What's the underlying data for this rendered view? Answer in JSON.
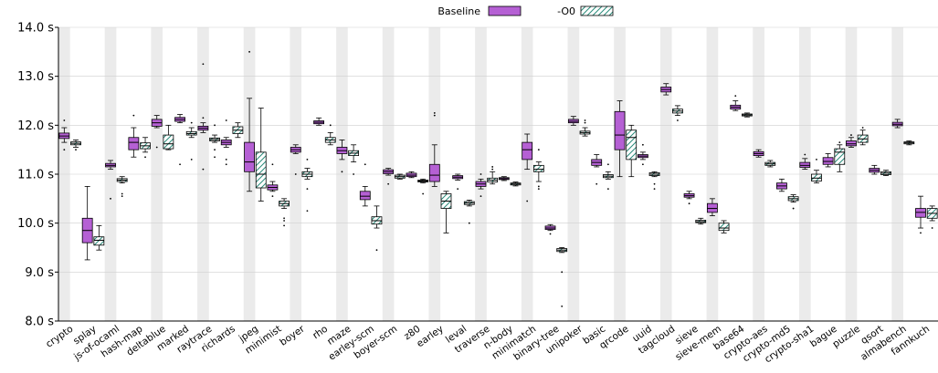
{
  "chart_data": {
    "type": "box",
    "ylim": [
      8.0,
      14.0
    ],
    "yticks": [
      {
        "value": 8.0,
        "label": "8.0 s"
      },
      {
        "value": 9.0,
        "label": "9.0 s"
      },
      {
        "value": 10.0,
        "label": "10.0 s"
      },
      {
        "value": 11.0,
        "label": "11.0 s"
      },
      {
        "value": 12.0,
        "label": "12.0 s"
      },
      {
        "value": 13.0,
        "label": "13.0 s"
      },
      {
        "value": 14.0,
        "label": "14.0 s"
      }
    ],
    "legend_position": "top-center",
    "series": [
      {
        "name": "Baseline",
        "color": "#b560d4",
        "pattern": "solid"
      },
      {
        "name": "-O0",
        "color": "#2a8b7a",
        "pattern": "hatched"
      }
    ],
    "categories": [
      "crypto",
      "splay",
      "js-of-ocaml",
      "hash-map",
      "deltablue",
      "marked",
      "raytrace",
      "richards",
      "jpeg",
      "minimist",
      "boyer",
      "rho",
      "maze",
      "earley-scm",
      "boyer-scm",
      "z80",
      "earley",
      "leval",
      "traverse",
      "n-body",
      "minimatch",
      "binary-tree",
      "unipoker",
      "basic",
      "qrcode",
      "uuid",
      "tagcloud",
      "sieve",
      "sieve-mem",
      "base64",
      "crypto-aes",
      "crypto-md5",
      "crypto-sha1",
      "bague",
      "puzzle",
      "qsort",
      "almabench",
      "fannkuch"
    ],
    "boxes": [
      {
        "category": "crypto",
        "series": "Baseline",
        "min": 11.65,
        "q1": 11.73,
        "median": 11.78,
        "q3": 11.84,
        "max": 11.95,
        "outliers": [
          12.1,
          11.5
        ]
      },
      {
        "category": "crypto",
        "series": "-O0",
        "min": 11.55,
        "q1": 11.6,
        "median": 11.63,
        "q3": 11.66,
        "max": 11.7,
        "outliers": [
          11.5
        ]
      },
      {
        "category": "splay",
        "series": "Baseline",
        "min": 9.25,
        "q1": 9.6,
        "median": 9.85,
        "q3": 10.1,
        "max": 10.75,
        "outliers": []
      },
      {
        "category": "splay",
        "series": "-O0",
        "min": 9.45,
        "q1": 9.55,
        "median": 9.65,
        "q3": 9.72,
        "max": 9.95,
        "outliers": []
      },
      {
        "category": "js-of-ocaml",
        "series": "Baseline",
        "min": 11.1,
        "q1": 11.15,
        "median": 11.18,
        "q3": 11.22,
        "max": 11.28,
        "outliers": [
          10.5
        ]
      },
      {
        "category": "js-of-ocaml",
        "series": "-O0",
        "min": 10.82,
        "q1": 10.85,
        "median": 10.88,
        "q3": 10.91,
        "max": 10.95,
        "outliers": [
          10.6,
          10.55
        ]
      },
      {
        "category": "hash-map",
        "series": "Baseline",
        "min": 11.35,
        "q1": 11.5,
        "median": 11.65,
        "q3": 11.75,
        "max": 11.95,
        "outliers": [
          12.2
        ]
      },
      {
        "category": "hash-map",
        "series": "-O0",
        "min": 11.45,
        "q1": 11.52,
        "median": 11.58,
        "q3": 11.64,
        "max": 11.75,
        "outliers": [
          11.35
        ]
      },
      {
        "category": "deltablue",
        "series": "Baseline",
        "min": 11.95,
        "q1": 11.98,
        "median": 12.05,
        "q3": 12.12,
        "max": 12.2,
        "outliers": [
          11.55
        ]
      },
      {
        "category": "deltablue",
        "series": "-O0",
        "min": 11.5,
        "q1": 11.52,
        "median": 11.62,
        "q3": 11.8,
        "max": 12.0,
        "outliers": []
      },
      {
        "category": "marked",
        "series": "Baseline",
        "min": 12.05,
        "q1": 12.08,
        "median": 12.12,
        "q3": 12.16,
        "max": 12.22,
        "outliers": [
          11.2
        ]
      },
      {
        "category": "marked",
        "series": "-O0",
        "min": 11.75,
        "q1": 11.8,
        "median": 11.83,
        "q3": 11.87,
        "max": 11.95,
        "outliers": [
          12.05,
          11.3
        ]
      },
      {
        "category": "raytrace",
        "series": "Baseline",
        "min": 11.85,
        "q1": 11.9,
        "median": 11.94,
        "q3": 11.98,
        "max": 12.05,
        "outliers": [
          13.25,
          12.15,
          11.1
        ]
      },
      {
        "category": "raytrace",
        "series": "-O0",
        "min": 11.65,
        "q1": 11.68,
        "median": 11.71,
        "q3": 11.74,
        "max": 11.8,
        "outliers": [
          12.0,
          11.5,
          11.35
        ]
      },
      {
        "category": "richards",
        "series": "Baseline",
        "min": 11.55,
        "q1": 11.6,
        "median": 11.65,
        "q3": 11.7,
        "max": 11.75,
        "outliers": [
          11.3,
          11.2,
          12.1
        ]
      },
      {
        "category": "richards",
        "series": "-O0",
        "min": 11.75,
        "q1": 11.83,
        "median": 11.9,
        "q3": 11.97,
        "max": 12.05,
        "outliers": []
      },
      {
        "category": "jpeg",
        "series": "Baseline",
        "min": 10.65,
        "q1": 11.05,
        "median": 11.25,
        "q3": 11.65,
        "max": 12.55,
        "outliers": [
          13.5
        ]
      },
      {
        "category": "jpeg",
        "series": "-O0",
        "min": 10.45,
        "q1": 10.72,
        "median": 11.0,
        "q3": 11.45,
        "max": 12.35,
        "outliers": []
      },
      {
        "category": "minimist",
        "series": "Baseline",
        "min": 10.65,
        "q1": 10.68,
        "median": 10.73,
        "q3": 10.78,
        "max": 10.85,
        "outliers": [
          11.2,
          10.55
        ]
      },
      {
        "category": "minimist",
        "series": "-O0",
        "min": 10.3,
        "q1": 10.35,
        "median": 10.4,
        "q3": 10.45,
        "max": 10.5,
        "outliers": [
          10.1,
          10.05,
          9.95
        ]
      },
      {
        "category": "boyer",
        "series": "Baseline",
        "min": 11.42,
        "q1": 11.45,
        "median": 11.5,
        "q3": 11.55,
        "max": 11.6,
        "outliers": [
          11.0
        ]
      },
      {
        "category": "boyer",
        "series": "-O0",
        "min": 10.9,
        "q1": 10.95,
        "median": 11.0,
        "q3": 11.05,
        "max": 11.12,
        "outliers": [
          11.3,
          10.7,
          10.25
        ]
      },
      {
        "category": "rho",
        "series": "Baseline",
        "min": 12.0,
        "q1": 12.03,
        "median": 12.06,
        "q3": 12.09,
        "max": 12.15,
        "outliers": []
      },
      {
        "category": "rho",
        "series": "-O0",
        "min": 11.6,
        "q1": 11.65,
        "median": 11.7,
        "q3": 11.75,
        "max": 11.85,
        "outliers": [
          12.0
        ]
      },
      {
        "category": "maze",
        "series": "Baseline",
        "min": 11.3,
        "q1": 11.42,
        "median": 11.48,
        "q3": 11.55,
        "max": 11.7,
        "outliers": [
          11.05
        ]
      },
      {
        "category": "maze",
        "series": "-O0",
        "min": 11.25,
        "q1": 11.38,
        "median": 11.43,
        "q3": 11.48,
        "max": 11.6,
        "outliers": [
          11.0
        ]
      },
      {
        "category": "earley-scm",
        "series": "Baseline",
        "min": 10.35,
        "q1": 10.48,
        "median": 10.55,
        "q3": 10.65,
        "max": 10.75,
        "outliers": [
          11.2
        ]
      },
      {
        "category": "earley-scm",
        "series": "-O0",
        "min": 9.9,
        "q1": 9.98,
        "median": 10.05,
        "q3": 10.13,
        "max": 10.35,
        "outliers": [
          9.45
        ]
      },
      {
        "category": "boyer-scm",
        "series": "Baseline",
        "min": 10.98,
        "q1": 11.01,
        "median": 11.05,
        "q3": 11.09,
        "max": 11.12,
        "outliers": [
          10.8
        ]
      },
      {
        "category": "boyer-scm",
        "series": "-O0",
        "min": 10.9,
        "q1": 10.92,
        "median": 10.95,
        "q3": 10.98,
        "max": 11.0,
        "outliers": []
      },
      {
        "category": "z80",
        "series": "Baseline",
        "min": 10.93,
        "q1": 10.95,
        "median": 10.98,
        "q3": 11.02,
        "max": 11.05,
        "outliers": []
      },
      {
        "category": "z80",
        "series": "-O0",
        "min": 10.82,
        "q1": 10.84,
        "median": 10.86,
        "q3": 10.88,
        "max": 10.9,
        "outliers": [
          10.6
        ]
      },
      {
        "category": "earley",
        "series": "Baseline",
        "min": 10.75,
        "q1": 10.85,
        "median": 10.98,
        "q3": 11.2,
        "max": 11.6,
        "outliers": [
          12.25,
          12.2
        ]
      },
      {
        "category": "earley",
        "series": "-O0",
        "min": 9.8,
        "q1": 10.3,
        "median": 10.45,
        "q3": 10.6,
        "max": 10.65,
        "outliers": []
      },
      {
        "category": "leval",
        "series": "Baseline",
        "min": 10.88,
        "q1": 10.91,
        "median": 10.94,
        "q3": 10.97,
        "max": 11.0,
        "outliers": [
          10.7
        ]
      },
      {
        "category": "leval",
        "series": "-O0",
        "min": 10.35,
        "q1": 10.38,
        "median": 10.41,
        "q3": 10.44,
        "max": 10.47,
        "outliers": [
          10.0
        ]
      },
      {
        "category": "traverse",
        "series": "Baseline",
        "min": 10.7,
        "q1": 10.75,
        "median": 10.8,
        "q3": 10.85,
        "max": 10.9,
        "outliers": [
          10.55,
          11.0
        ]
      },
      {
        "category": "traverse",
        "series": "-O0",
        "min": 10.8,
        "q1": 10.84,
        "median": 10.88,
        "q3": 10.92,
        "max": 11.05,
        "outliers": [
          11.15,
          11.1
        ]
      },
      {
        "category": "n-body",
        "series": "Baseline",
        "min": 10.87,
        "q1": 10.89,
        "median": 10.91,
        "q3": 10.93,
        "max": 10.95,
        "outliers": []
      },
      {
        "category": "n-body",
        "series": "-O0",
        "min": 10.76,
        "q1": 10.78,
        "median": 10.8,
        "q3": 10.82,
        "max": 10.84,
        "outliers": []
      },
      {
        "category": "minimatch",
        "series": "Baseline",
        "min": 11.1,
        "q1": 11.3,
        "median": 11.5,
        "q3": 11.65,
        "max": 11.82,
        "outliers": [
          10.45
        ]
      },
      {
        "category": "minimatch",
        "series": "-O0",
        "min": 10.85,
        "q1": 11.05,
        "median": 11.1,
        "q3": 11.18,
        "max": 11.25,
        "outliers": [
          11.5,
          10.75,
          10.7
        ]
      },
      {
        "category": "binary-tree",
        "series": "Baseline",
        "min": 9.85,
        "q1": 9.87,
        "median": 9.9,
        "q3": 9.94,
        "max": 9.97,
        "outliers": [
          9.78
        ]
      },
      {
        "category": "binary-tree",
        "series": "-O0",
        "min": 9.4,
        "q1": 9.42,
        "median": 9.45,
        "q3": 9.48,
        "max": 9.5,
        "outliers": [
          9.0,
          8.3
        ]
      },
      {
        "category": "unipoker",
        "series": "Baseline",
        "min": 12.0,
        "q1": 12.05,
        "median": 12.08,
        "q3": 12.12,
        "max": 12.18,
        "outliers": []
      },
      {
        "category": "unipoker",
        "series": "-O0",
        "min": 11.78,
        "q1": 11.82,
        "median": 11.85,
        "q3": 11.88,
        "max": 11.95,
        "outliers": [
          12.1,
          12.05
        ]
      },
      {
        "category": "basic",
        "series": "Baseline",
        "min": 11.15,
        "q1": 11.18,
        "median": 11.24,
        "q3": 11.3,
        "max": 11.4,
        "outliers": [
          10.8
        ]
      },
      {
        "category": "basic",
        "series": "-O0",
        "min": 10.9,
        "q1": 10.93,
        "median": 10.96,
        "q3": 10.99,
        "max": 11.05,
        "outliers": [
          11.2,
          10.7
        ]
      },
      {
        "category": "qrcode",
        "series": "Baseline",
        "min": 10.95,
        "q1": 11.5,
        "median": 11.8,
        "q3": 12.28,
        "max": 12.5,
        "outliers": []
      },
      {
        "category": "qrcode",
        "series": "-O0",
        "min": 10.95,
        "q1": 11.3,
        "median": 11.75,
        "q3": 11.9,
        "max": 12.0,
        "outliers": []
      },
      {
        "category": "uuid",
        "series": "Baseline",
        "min": 11.3,
        "q1": 11.34,
        "median": 11.37,
        "q3": 11.4,
        "max": 11.45,
        "outliers": [
          11.6,
          11.2
        ]
      },
      {
        "category": "uuid",
        "series": "-O0",
        "min": 10.95,
        "q1": 10.97,
        "median": 11.0,
        "q3": 11.03,
        "max": 11.05,
        "outliers": [
          10.8,
          10.7
        ]
      },
      {
        "category": "tagcloud",
        "series": "Baseline",
        "min": 12.62,
        "q1": 12.68,
        "median": 12.73,
        "q3": 12.78,
        "max": 12.85,
        "outliers": []
      },
      {
        "category": "tagcloud",
        "series": "-O0",
        "min": 12.2,
        "q1": 12.25,
        "median": 12.29,
        "q3": 12.33,
        "max": 12.4,
        "outliers": [
          12.1
        ]
      },
      {
        "category": "sieve",
        "series": "Baseline",
        "min": 10.5,
        "q1": 10.53,
        "median": 10.56,
        "q3": 10.6,
        "max": 10.65,
        "outliers": [
          10.4
        ]
      },
      {
        "category": "sieve",
        "series": "-O0",
        "min": 9.98,
        "q1": 10.01,
        "median": 10.03,
        "q3": 10.06,
        "max": 10.1,
        "outliers": []
      },
      {
        "category": "sieve-mem",
        "series": "Baseline",
        "min": 10.15,
        "q1": 10.22,
        "median": 10.3,
        "q3": 10.4,
        "max": 10.5,
        "outliers": []
      },
      {
        "category": "sieve-mem",
        "series": "-O0",
        "min": 9.8,
        "q1": 9.85,
        "median": 9.9,
        "q3": 10.0,
        "max": 10.05,
        "outliers": []
      },
      {
        "category": "base64",
        "series": "Baseline",
        "min": 12.3,
        "q1": 12.33,
        "median": 12.37,
        "q3": 12.41,
        "max": 12.5,
        "outliers": [
          12.6
        ]
      },
      {
        "category": "base64",
        "series": "-O0",
        "min": 12.17,
        "q1": 12.19,
        "median": 12.21,
        "q3": 12.23,
        "max": 12.25,
        "outliers": []
      },
      {
        "category": "crypto-aes",
        "series": "Baseline",
        "min": 11.35,
        "q1": 11.38,
        "median": 11.42,
        "q3": 11.46,
        "max": 11.5,
        "outliers": []
      },
      {
        "category": "crypto-aes",
        "series": "-O0",
        "min": 11.15,
        "q1": 11.18,
        "median": 11.21,
        "q3": 11.24,
        "max": 11.28,
        "outliers": []
      },
      {
        "category": "crypto-md5",
        "series": "Baseline",
        "min": 10.65,
        "q1": 10.7,
        "median": 10.76,
        "q3": 10.82,
        "max": 10.9,
        "outliers": []
      },
      {
        "category": "crypto-md5",
        "series": "-O0",
        "min": 10.43,
        "q1": 10.46,
        "median": 10.5,
        "q3": 10.54,
        "max": 10.58,
        "outliers": [
          10.3
        ]
      },
      {
        "category": "crypto-sha1",
        "series": "Baseline",
        "min": 11.1,
        "q1": 11.14,
        "median": 11.18,
        "q3": 11.24,
        "max": 11.32,
        "outliers": [
          11.4
        ]
      },
      {
        "category": "crypto-sha1",
        "series": "-O0",
        "min": 10.82,
        "q1": 10.86,
        "median": 10.92,
        "q3": 11.0,
        "max": 11.08,
        "outliers": [
          11.3
        ]
      },
      {
        "category": "bague",
        "series": "Baseline",
        "min": 11.15,
        "q1": 11.2,
        "median": 11.26,
        "q3": 11.34,
        "max": 11.42,
        "outliers": []
      },
      {
        "category": "bague",
        "series": "-O0",
        "min": 11.05,
        "q1": 11.2,
        "median": 11.45,
        "q3": 11.52,
        "max": 11.6,
        "outliers": [
          11.65
        ]
      },
      {
        "category": "puzzle",
        "series": "Baseline",
        "min": 11.55,
        "q1": 11.58,
        "median": 11.62,
        "q3": 11.68,
        "max": 11.75,
        "outliers": [
          11.8
        ]
      },
      {
        "category": "puzzle",
        "series": "-O0",
        "min": 11.6,
        "q1": 11.65,
        "median": 11.72,
        "q3": 11.8,
        "max": 11.9,
        "outliers": [
          11.95
        ]
      },
      {
        "category": "qsort",
        "series": "Baseline",
        "min": 11.0,
        "q1": 11.04,
        "median": 11.08,
        "q3": 11.12,
        "max": 11.18,
        "outliers": []
      },
      {
        "category": "qsort",
        "series": "-O0",
        "min": 10.97,
        "q1": 10.99,
        "median": 11.02,
        "q3": 11.05,
        "max": 11.08,
        "outliers": []
      },
      {
        "category": "almabench",
        "series": "Baseline",
        "min": 11.95,
        "q1": 11.99,
        "median": 12.02,
        "q3": 12.06,
        "max": 12.12,
        "outliers": []
      },
      {
        "category": "almabench",
        "series": "-O0",
        "min": 11.6,
        "q1": 11.62,
        "median": 11.64,
        "q3": 11.66,
        "max": 11.68,
        "outliers": []
      },
      {
        "category": "fannkuch",
        "series": "Baseline",
        "min": 9.9,
        "q1": 10.12,
        "median": 10.22,
        "q3": 10.3,
        "max": 10.55,
        "outliers": [
          9.8
        ]
      },
      {
        "category": "fannkuch",
        "series": "-O0",
        "min": 10.05,
        "q1": 10.1,
        "median": 10.2,
        "q3": 10.3,
        "max": 10.35,
        "outliers": [
          9.9
        ]
      }
    ]
  }
}
